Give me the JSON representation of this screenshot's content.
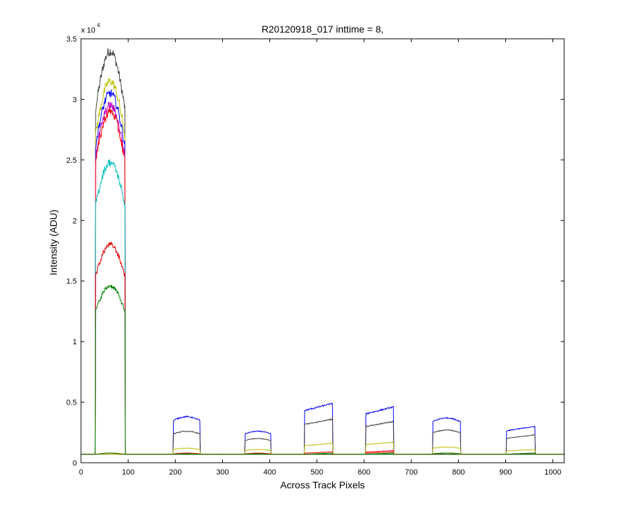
{
  "chart_data": {
    "type": "line",
    "title": "R20120918_017 inttime = 8,",
    "xlabel": "Across Track Pixels",
    "ylabel": "Intensity (ADU)",
    "y_exponent_label": "x 10",
    "y_exponent_power": "4",
    "xlim": [
      0,
      1024
    ],
    "ylim": [
      0,
      35000
    ],
    "x_ticks": [
      0,
      100,
      200,
      300,
      400,
      500,
      600,
      700,
      800,
      900,
      1000
    ],
    "x_tick_labels": [
      "0",
      "100",
      "200",
      "300",
      "400",
      "500",
      "600",
      "700",
      "800",
      "900",
      "1000"
    ],
    "y_ticks": [
      0,
      5000,
      10000,
      15000,
      20000,
      25000,
      30000,
      35000
    ],
    "y_tick_labels": [
      "0",
      "0.5",
      "1",
      "1.5",
      "2",
      "2.5",
      "3",
      "3.5"
    ],
    "grid": false,
    "legend": "none",
    "baseline": 700,
    "segments": [
      {
        "x_start": 31,
        "x_end": 93,
        "shape": "dome"
      },
      {
        "x_start": 196,
        "x_end": 252,
        "shape": "flat"
      },
      {
        "x_start": 348,
        "x_end": 402,
        "shape": "flat"
      },
      {
        "x_start": 474,
        "x_end": 533,
        "shape": "ramp"
      },
      {
        "x_start": 604,
        "x_end": 662,
        "shape": "ramp"
      },
      {
        "x_start": 746,
        "x_end": 804,
        "shape": "flat"
      },
      {
        "x_start": 902,
        "x_end": 962,
        "shape": "ramp"
      }
    ],
    "series": [
      {
        "color": "#404040",
        "peaks": [
          34000,
          700,
          700,
          700,
          700,
          700,
          700
        ]
      },
      {
        "color": "#bfbf00",
        "peaks": [
          31500,
          700,
          700,
          700,
          700,
          700,
          700
        ]
      },
      {
        "color": "#0000ff",
        "peaks": [
          30500,
          3800,
          2600,
          4900,
          4600,
          3700,
          3000
        ]
      },
      {
        "color": "#bf00bf",
        "peaks": [
          29500,
          700,
          700,
          700,
          700,
          700,
          700
        ]
      },
      {
        "color": "#ff0000",
        "peaks": [
          29000,
          700,
          700,
          700,
          700,
          700,
          700
        ]
      },
      {
        "color": "#00bfbf",
        "peaks": [
          24800,
          700,
          700,
          700,
          700,
          700,
          700
        ]
      },
      {
        "color": "#e60000",
        "peaks": [
          18000,
          700,
          700,
          700,
          900,
          700,
          700
        ]
      },
      {
        "color": "#008000",
        "peaks": [
          14600,
          700,
          700,
          700,
          700,
          700,
          700
        ]
      },
      {
        "color": "#404040",
        "peaks": [
          700,
          2600,
          2000,
          3600,
          3400,
          2700,
          2300
        ]
      },
      {
        "color": "#bfbf00",
        "peaks": [
          700,
          1200,
          1100,
          1600,
          1700,
          1300,
          1100
        ]
      },
      {
        "color": "#ff0000",
        "peaks": [
          800,
          800,
          800,
          900,
          1000,
          800,
          800
        ]
      },
      {
        "color": "#008000",
        "peaks": [
          800,
          750,
          750,
          800,
          800,
          800,
          800
        ]
      }
    ]
  }
}
